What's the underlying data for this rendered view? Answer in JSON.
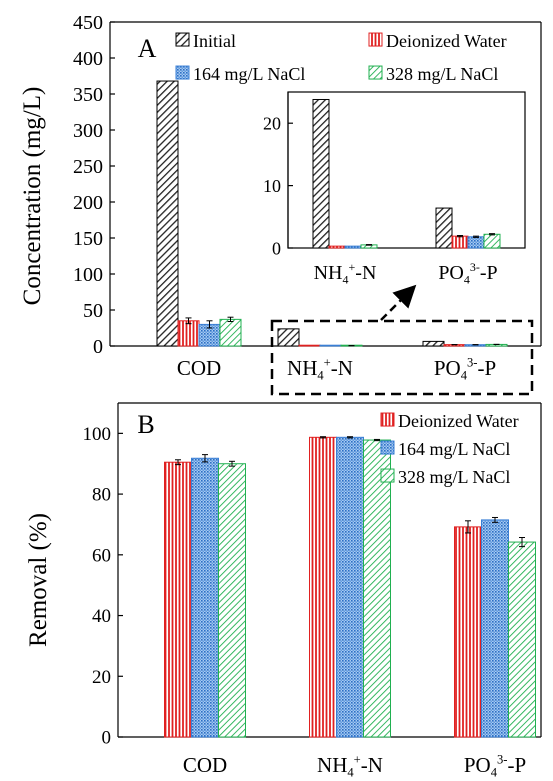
{
  "chart_data": [
    {
      "type": "bar",
      "panel_label": "A",
      "ylabel": "Concentration (mg/L)",
      "ylim": [
        0,
        450
      ],
      "yticks": [
        0,
        50,
        100,
        150,
        200,
        250,
        300,
        350,
        400,
        450
      ],
      "categories": [
        "COD",
        "NH4+-N",
        "PO43--P"
      ],
      "category_labels": [
        {
          "base": "COD",
          "sup": "",
          "tail": ""
        },
        {
          "base": "NH",
          "sub": "4",
          "sup": "+",
          "tail": "-N"
        },
        {
          "base": "PO",
          "sub": "4",
          "sup": "3-",
          "tail": "-P"
        }
      ],
      "legend_position": "top",
      "series": [
        {
          "name": "Initial",
          "pattern": "hatch-diagonal-dark",
          "color": "#333333",
          "values": [
            368,
            23.8,
            6.4
          ],
          "errors": [
            0,
            0,
            0
          ]
        },
        {
          "name": "Deionized Water",
          "pattern": "vertical-red",
          "color": "#e02020",
          "values": [
            35,
            0.3,
            1.9
          ],
          "errors": [
            4,
            0,
            0.1
          ]
        },
        {
          "name": "164 mg/L NaCl",
          "pattern": "dots-blue",
          "color": "#3a7fd5",
          "values": [
            30,
            0.3,
            1.8
          ],
          "errors": [
            5,
            0,
            0.1
          ]
        },
        {
          "name": "328 mg/L NaCl",
          "pattern": "diagonal-green",
          "color": "#20b050",
          "values": [
            37,
            0.5,
            2.2
          ],
          "errors": [
            3,
            0.05,
            0.1
          ]
        }
      ],
      "inset": {
        "ylim": [
          0,
          25
        ],
        "yticks": [
          0,
          10,
          20
        ],
        "categories": [
          "NH4+-N",
          "PO43--P"
        ]
      }
    },
    {
      "type": "bar",
      "panel_label": "B",
      "ylabel": "Removal (%)",
      "ylim": [
        0,
        110
      ],
      "yticks": [
        0,
        20,
        40,
        60,
        80,
        100
      ],
      "categories": [
        "COD",
        "NH4+-N",
        "PO43--P"
      ],
      "legend_position": "top-right",
      "series": [
        {
          "name": "Deionized Water",
          "pattern": "vertical-red",
          "color": "#e02020",
          "values": [
            90.5,
            98.7,
            69.2
          ],
          "errors": [
            0.8,
            0.2,
            2.0
          ]
        },
        {
          "name": "164 mg/L NaCl",
          "pattern": "dots-blue",
          "color": "#3a7fd5",
          "values": [
            91.8,
            98.7,
            71.5
          ],
          "errors": [
            1.2,
            0.2,
            0.8
          ]
        },
        {
          "name": "328 mg/L NaCl",
          "pattern": "diagonal-green",
          "color": "#20b050",
          "values": [
            90.0,
            97.8,
            64.2
          ],
          "errors": [
            0.8,
            0.2,
            1.5
          ]
        }
      ]
    }
  ]
}
